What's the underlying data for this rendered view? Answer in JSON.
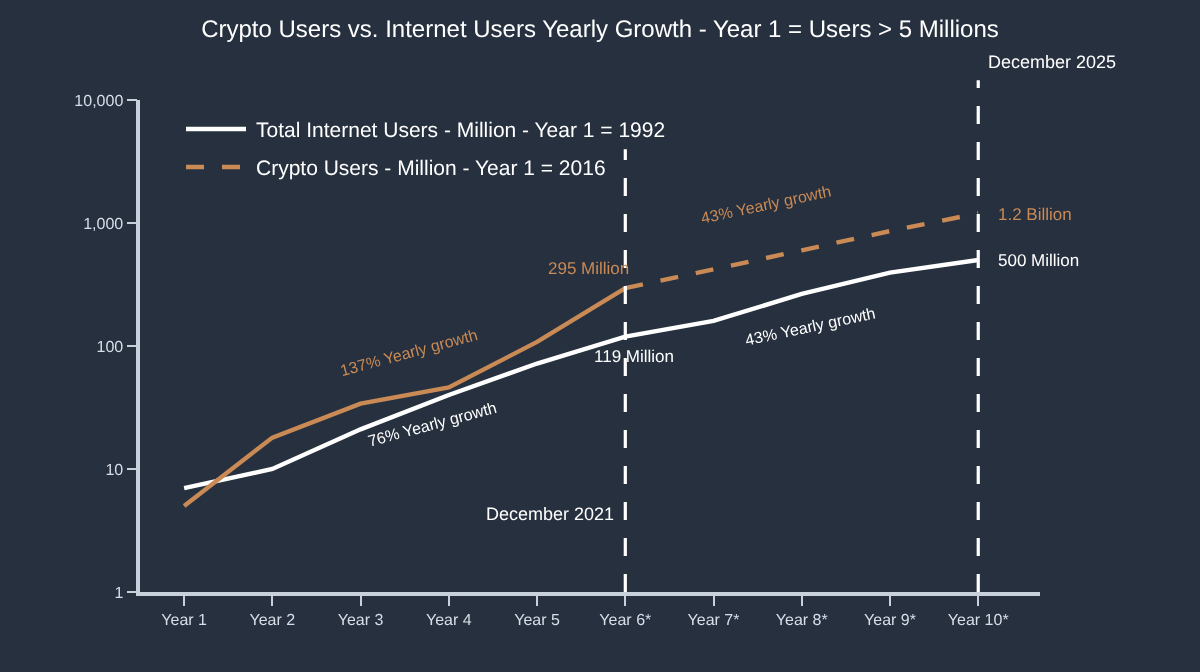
{
  "chart_data": {
    "type": "line",
    "title": "Crypto Users vs. Internet Users Yearly Growth - Year 1 = Users > 5 Millions",
    "categories": [
      "Year 1",
      "Year 2",
      "Year 3",
      "Year 4",
      "Year 5",
      "Year 6*",
      "Year 7*",
      "Year 8*",
      "Year 9*",
      "Year 10*"
    ],
    "series": [
      {
        "name": "Total Internet Users - Million - Year 1 = 1992",
        "color": "#ffffff",
        "line_style": "solid",
        "values": [
          7,
          10,
          21,
          40,
          72,
          119,
          160,
          265,
          395,
          500
        ]
      },
      {
        "color": "#c98a55",
        "line_style": "solid",
        "values": [
          5,
          18,
          34,
          46,
          108,
          295,
          null,
          null,
          null,
          null
        ]
      },
      {
        "name": "Crypto Users - Million - Year 1 = 2016",
        "color": "#c98a55",
        "line_style": "dashed",
        "values": [
          null,
          null,
          null,
          null,
          null,
          295,
          420,
          600,
          860,
          1200
        ]
      }
    ],
    "log": true,
    "ylim": [
      1,
      10000
    ],
    "yticks": [
      1,
      10,
      100,
      {
        "value": 1000,
        "label": "1,000"
      },
      {
        "value": 10000,
        "label": "10,000"
      }
    ],
    "grid": false,
    "marker": "none",
    "legend": "top left",
    "ref_lines": [
      {
        "axis": "x",
        "value": "Year 6*",
        "label": "December 2021",
        "color": "#ffffff",
        "line_style": "dashed"
      },
      {
        "axis": "x",
        "value": "Year 10*",
        "label": "December 2025",
        "color": "#ffffff",
        "line_style": "dashed"
      }
    ],
    "annotations": [
      {
        "text": "295 Million",
        "x": "Year 6*",
        "y": 295
      },
      {
        "text": "119 Million",
        "x": "Year 6*",
        "y": 119
      },
      {
        "text": "1.2 Billion",
        "x": "Year 10*",
        "y": 1200
      },
      {
        "text": "500 Million",
        "x": "Year 10*",
        "y": 500
      },
      "137% Yearly growth",
      "76% Yearly growth",
      "43% Yearly growth",
      "43% Yearly growth"
    ]
  }
}
